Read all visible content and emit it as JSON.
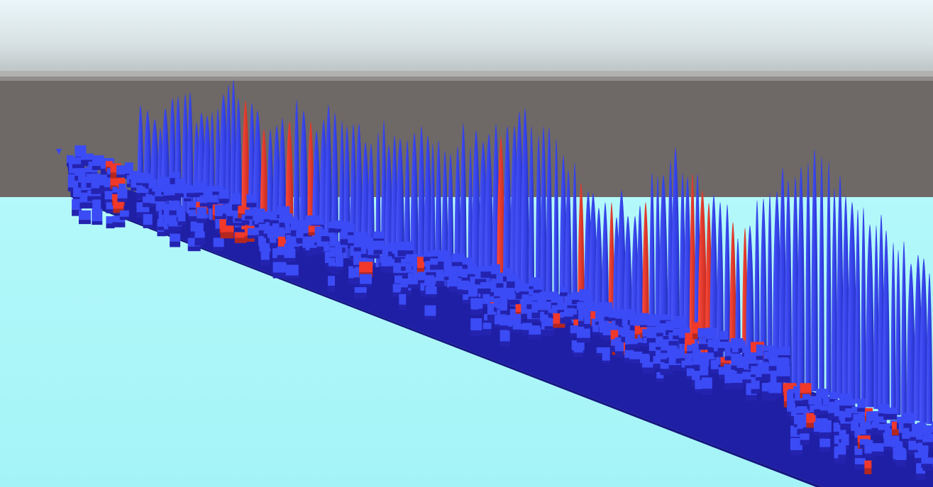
{
  "scene": {
    "kind": "3d-voxel-terrain",
    "palette": {
      "sky_top": "#eaf6f9",
      "sky_horizon": "#b7bcbd",
      "horizon_haze": "#d5d7d7",
      "backdrop_wall": "#6e6867",
      "ground_plane": "#a9f7f9",
      "voxel_top": "#3b4bf5",
      "voxel_side": "#2323b0",
      "voxel_front": "#1e1ea0",
      "voxel_shadow": "#1a1a8c",
      "spike_blue": "#3a46ee",
      "spike_blue_dark": "#2a2fc0",
      "accent_red": "#f0382b",
      "accent_red_dark": "#b4271f"
    },
    "icons": {
      "corner_marker": "small-triangle-marker"
    }
  }
}
